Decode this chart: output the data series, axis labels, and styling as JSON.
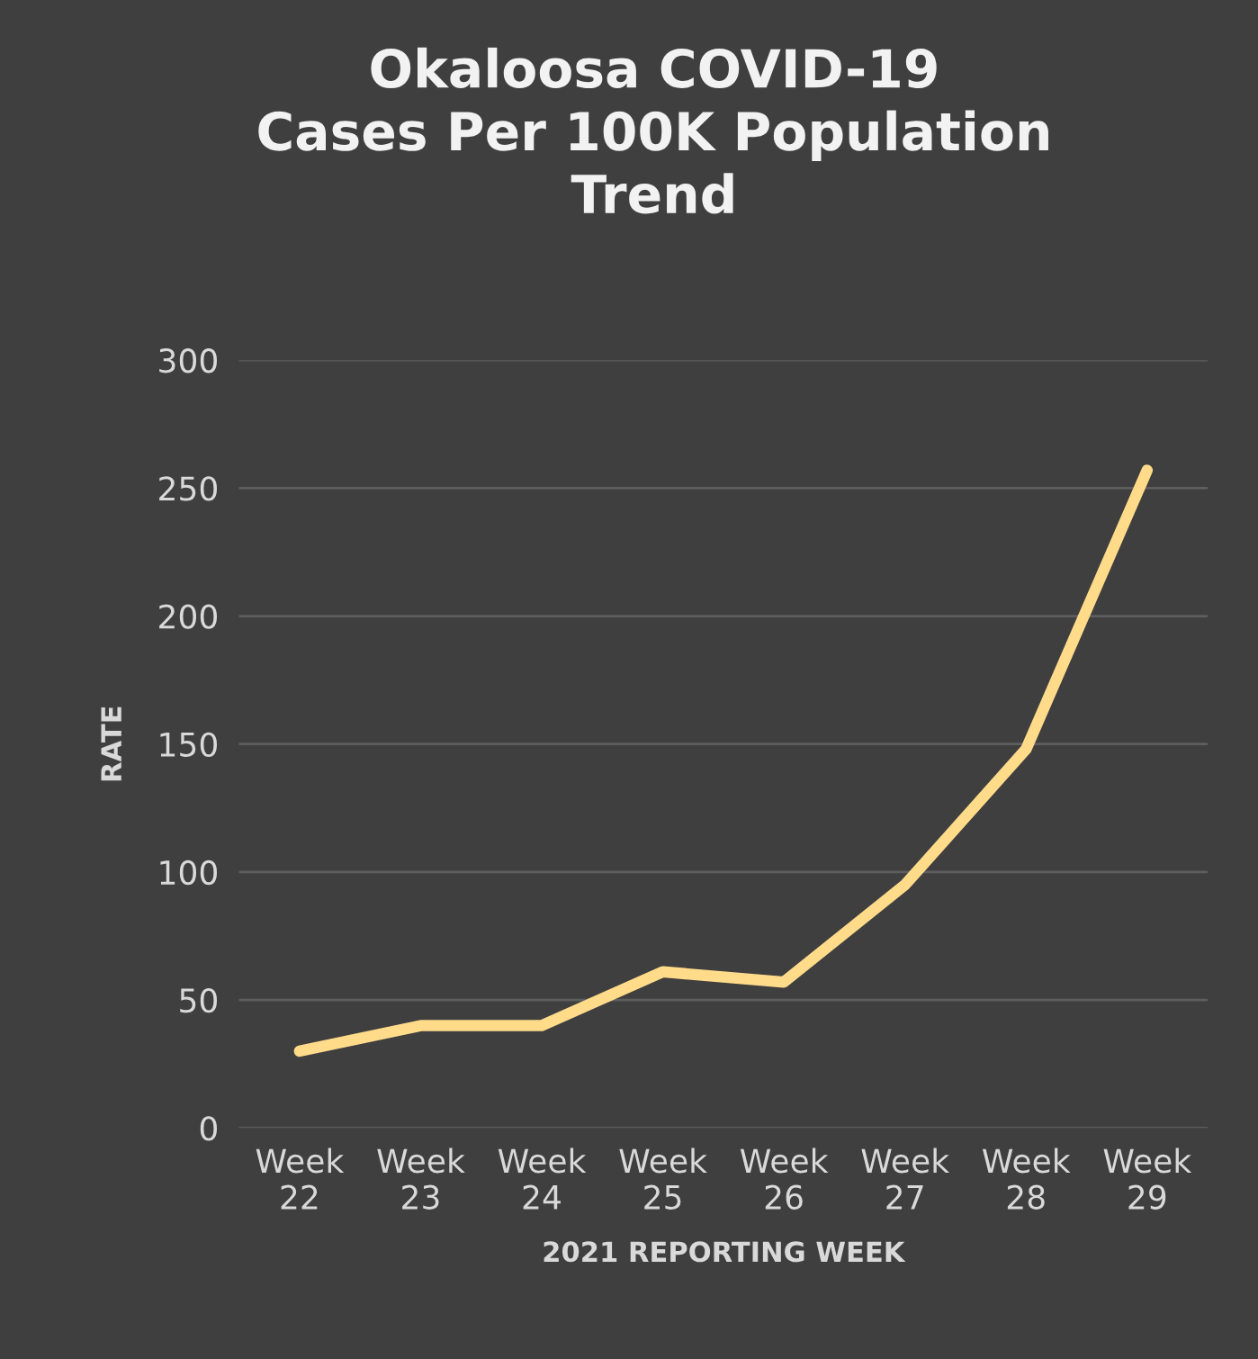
{
  "chart_data": {
    "type": "line",
    "title": "Okaloosa COVID-19\nCases Per 100K Population\nTrend",
    "xlabel": "2021 REPORTING WEEK",
    "ylabel": "RATE",
    "categories": [
      "Week\n22",
      "Week\n23",
      "Week\n24",
      "Week\n25",
      "Week\n26",
      "Week\n27",
      "Week\n28",
      "Week\n29"
    ],
    "series": [
      {
        "color": "#ffdb8a",
        "values": [
          30,
          40,
          40,
          61,
          57,
          95,
          148,
          257
        ]
      }
    ],
    "ylim": [
      0,
      300
    ],
    "yticks": [
      0,
      50,
      100,
      150,
      200,
      250,
      300
    ],
    "grid": "y",
    "marker": "none",
    "line_style": "solid"
  }
}
